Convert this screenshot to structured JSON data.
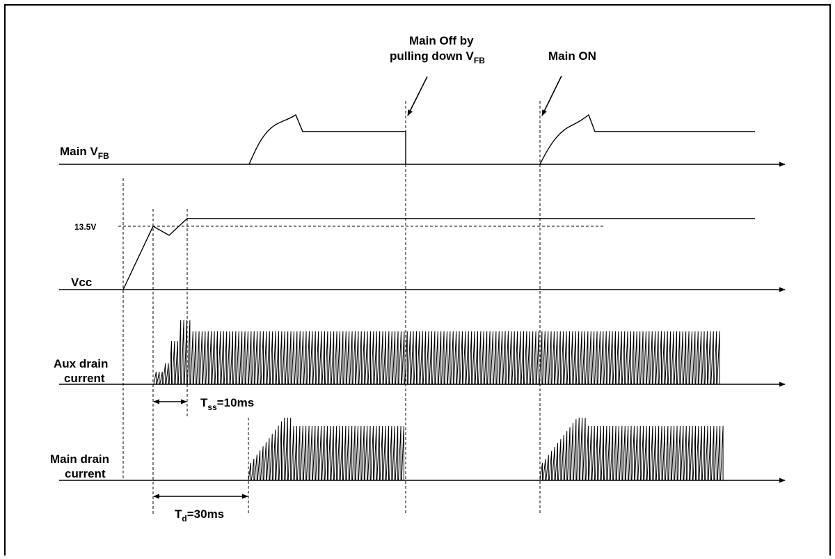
{
  "annotations": {
    "main_off_line1": "Main Off by",
    "main_off_line2": "pulling down V",
    "main_off_sub": "FB",
    "main_on": "Main ON"
  },
  "signals": {
    "main_vfb": {
      "label": "Main V",
      "sub": "FB"
    },
    "vcc": {
      "label": "Vcc",
      "level": "13.5V"
    },
    "aux_drain": {
      "line1": "Aux drain",
      "line2": "current"
    },
    "main_drain": {
      "line1": "Main drain",
      "line2": "current"
    }
  },
  "timings": {
    "tss": {
      "label": "T",
      "sub": "ss",
      "value": "=10ms"
    },
    "td": {
      "label": "T",
      "sub": "d",
      "value": "=30ms"
    }
  }
}
